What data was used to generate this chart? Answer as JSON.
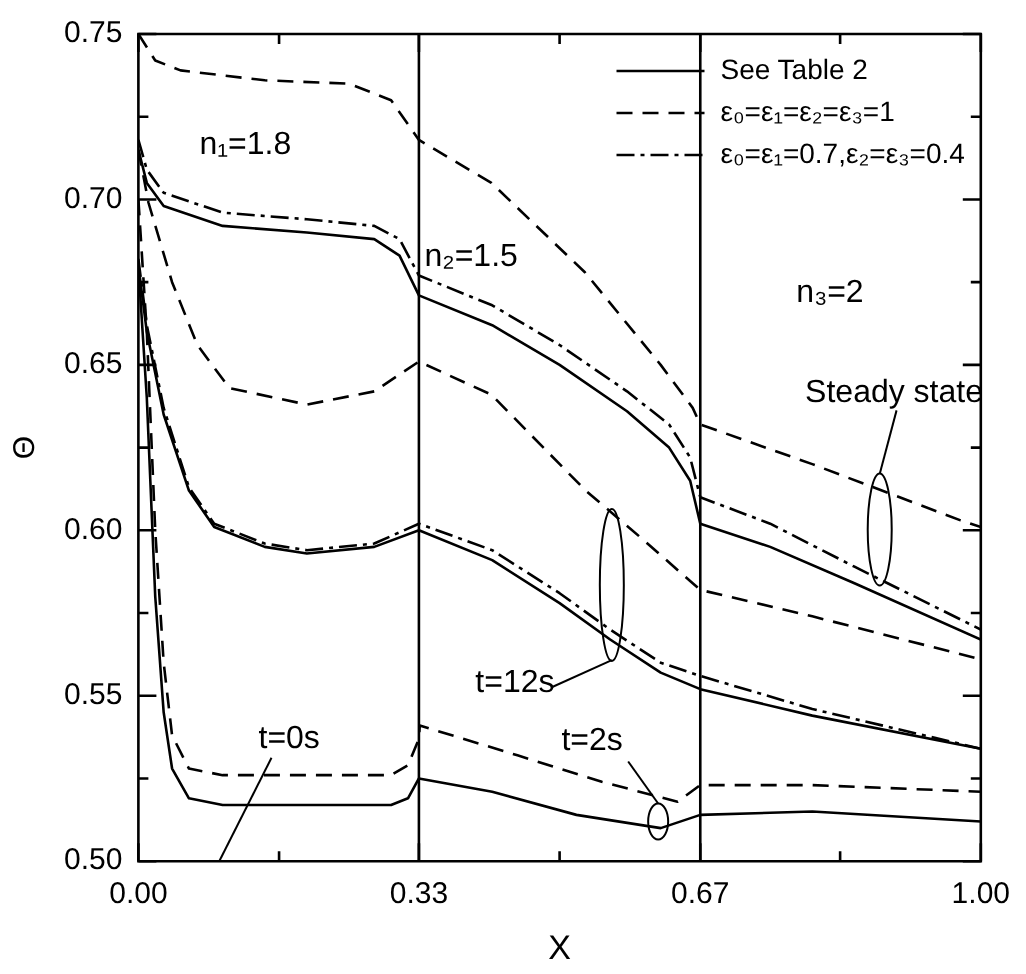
{
  "chart_data": {
    "type": "line",
    "xlabel": "X",
    "ylabel": "Θ",
    "xlim": [
      0,
      1
    ],
    "ylim": [
      0.5,
      0.75
    ],
    "xticks": [
      {
        "value": 0,
        "label": "0.00"
      },
      {
        "value": 0.167,
        "label": null
      },
      {
        "value": 0.333,
        "label": "0.33"
      },
      {
        "value": 0.5,
        "label": null
      },
      {
        "value": 0.667,
        "label": "0.67"
      },
      {
        "value": 0.833,
        "label": null
      },
      {
        "value": 1,
        "label": "1.00"
      }
    ],
    "yticks": [
      {
        "value": 0.5,
        "label": "0.50"
      },
      {
        "value": 0.525,
        "label": null
      },
      {
        "value": 0.55,
        "label": "0.55"
      },
      {
        "value": 0.575,
        "label": null
      },
      {
        "value": 0.6,
        "label": "0.60"
      },
      {
        "value": 0.625,
        "label": null
      },
      {
        "value": 0.65,
        "label": "0.65"
      },
      {
        "value": 0.675,
        "label": null
      },
      {
        "value": 0.7,
        "label": "0.70"
      },
      {
        "value": 0.725,
        "label": null
      },
      {
        "value": 0.75,
        "label": "0.75"
      }
    ],
    "grid": false,
    "legend": "top right",
    "marker": "none",
    "ref_lines": [
      {
        "axis": "x",
        "value": 0.333
      },
      {
        "axis": "x",
        "value": 0.667
      }
    ],
    "annotations": [
      "n₁=1.8",
      "n₂=1.5",
      "n₃=2",
      "t=0s",
      "t=12s",
      {
        "text": "t=2s",
        "x": 0.617,
        "y": 0.512
      },
      "Steady state"
    ],
    "series": [
      {
        "name": "See Table 2",
        "color": "#000000",
        "line_style": "solid",
        "x": [
          0,
          0.01,
          0.03,
          0.1,
          0.2,
          0.28,
          0.31,
          0.333,
          0.42,
          0.5,
          0.58,
          0.63,
          0.655,
          0.667,
          0.75,
          0.85,
          1
        ],
        "values": [
          0.715,
          0.705,
          0.698,
          0.692,
          0.69,
          0.688,
          0.683,
          0.671,
          0.662,
          0.65,
          0.636,
          0.625,
          0.615,
          0.602,
          0.595,
          0.584,
          0.567
        ]
      },
      {
        "color": "#000000",
        "line_style": "solid",
        "x": [
          0,
          0.01,
          0.03,
          0.06,
          0.09,
          0.15,
          0.2,
          0.28,
          0.333,
          0.42,
          0.5,
          0.56,
          0.62,
          0.667,
          0.8,
          1
        ],
        "values": [
          0.68,
          0.66,
          0.635,
          0.612,
          0.601,
          0.595,
          0.593,
          0.595,
          0.6,
          0.591,
          0.578,
          0.567,
          0.557,
          0.552,
          0.544,
          0.534
        ]
      },
      {
        "color": "#000000",
        "line_style": "solid",
        "x": [
          0,
          0.01,
          0.02,
          0.03,
          0.04,
          0.06,
          0.1,
          0.3,
          0.32,
          0.333,
          0.42,
          0.52,
          0.62,
          0.667,
          0.8,
          1
        ],
        "values": [
          0.68,
          0.64,
          0.58,
          0.545,
          0.528,
          0.519,
          0.517,
          0.517,
          0.519,
          0.525,
          0.521,
          0.514,
          0.51,
          0.514,
          0.515,
          0.512
        ]
      },
      {
        "name": "ε₀=ε₁=ε₂=ε₃=1",
        "color": "#000000",
        "line_style": "dashed",
        "x": [
          0,
          0.02,
          0.05,
          0.15,
          0.25,
          0.3,
          0.333,
          0.419,
          0.53,
          0.62,
          0.658,
          0.667,
          0.8,
          0.976,
          1
        ],
        "values": [
          0.75,
          0.742,
          0.739,
          0.736,
          0.735,
          0.73,
          0.718,
          0.705,
          0.678,
          0.65,
          0.637,
          0.632,
          0.62,
          0.603,
          0.601
        ]
      },
      {
        "color": "#000000",
        "line_style": "dashed",
        "x": [
          0,
          0.012,
          0.04,
          0.07,
          0.108,
          0.2,
          0.28,
          0.333,
          0.419,
          0.531,
          0.6,
          0.658,
          0.667,
          0.8,
          1
        ],
        "values": [
          0.715,
          0.699,
          0.675,
          0.656,
          0.643,
          0.638,
          0.642,
          0.651,
          0.641,
          0.612,
          0.597,
          0.584,
          0.582,
          0.574,
          0.561
        ]
      },
      {
        "color": "#000000",
        "line_style": "dashed",
        "x": [
          0,
          0.01,
          0.02,
          0.03,
          0.04,
          0.06,
          0.1,
          0.3,
          0.32,
          0.333,
          0.334,
          0.45,
          0.55,
          0.64,
          0.667,
          0.8,
          1
        ],
        "values": [
          0.7,
          0.66,
          0.6,
          0.56,
          0.538,
          0.528,
          0.526,
          0.526,
          0.529,
          0.537,
          0.541,
          0.532,
          0.524,
          0.518,
          0.523,
          0.523,
          0.521
        ]
      },
      {
        "name": "ε₀=ε₁=0.7,ε₂=ε₃=0.4",
        "color": "#000000",
        "line_style": "dashdot",
        "x": [
          0,
          0.01,
          0.03,
          0.1,
          0.2,
          0.28,
          0.31,
          0.333,
          0.42,
          0.5,
          0.58,
          0.63,
          0.655,
          0.667,
          0.75,
          0.85,
          1
        ],
        "values": [
          0.718,
          0.709,
          0.702,
          0.696,
          0.694,
          0.692,
          0.688,
          0.677,
          0.668,
          0.656,
          0.642,
          0.632,
          0.622,
          0.61,
          0.602,
          0.589,
          0.57
        ]
      },
      {
        "color": "#000000",
        "line_style": "dashdot",
        "x": [
          0,
          0.01,
          0.03,
          0.06,
          0.09,
          0.15,
          0.2,
          0.28,
          0.333,
          0.42,
          0.5,
          0.56,
          0.62,
          0.667,
          0.8,
          1
        ],
        "values": [
          0.682,
          0.662,
          0.637,
          0.613,
          0.602,
          0.596,
          0.594,
          0.596,
          0.602,
          0.594,
          0.581,
          0.57,
          0.56,
          0.556,
          0.546,
          0.534
        ]
      }
    ]
  }
}
